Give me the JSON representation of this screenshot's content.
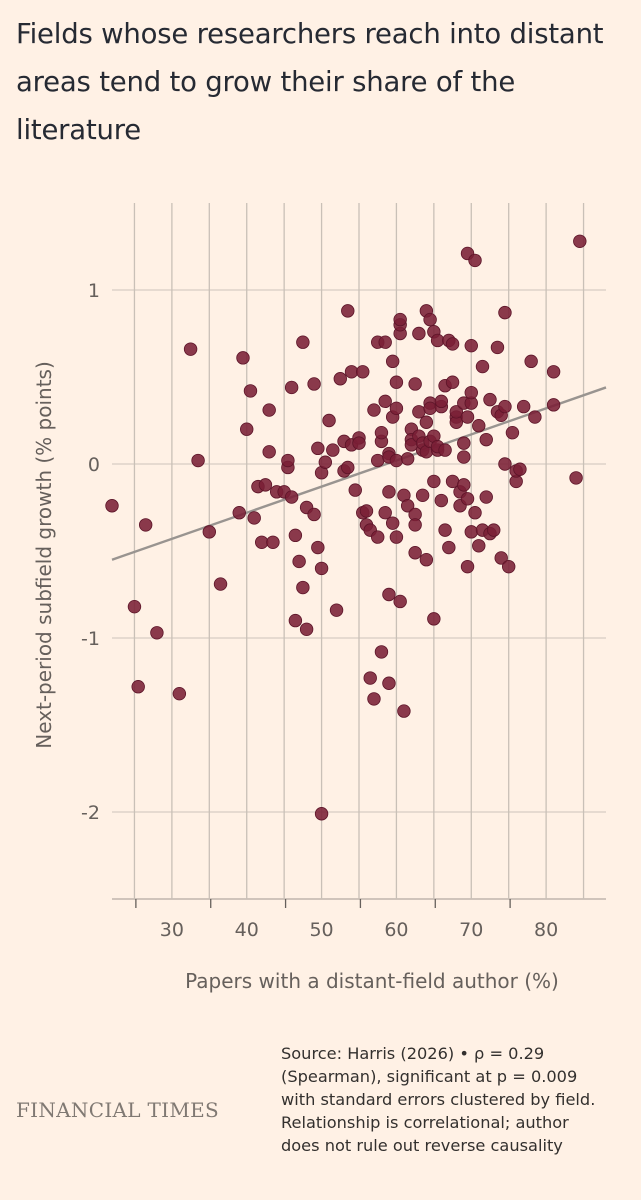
{
  "chart_data": {
    "type": "scatter",
    "title": "Fields whose researchers reach into distant areas tend to grow their share of the literature",
    "xlabel": "Papers with a distant-field author (%)",
    "ylabel": "Next-period subfield growth (% points)",
    "xlim": [
      22,
      88
    ],
    "ylim": [
      -2.5,
      1.5
    ],
    "xticks": [
      30,
      40,
      50,
      60,
      70,
      80
    ],
    "yticks": [
      1,
      0,
      -1,
      -2
    ],
    "grid": "vertical lines at x ticks, horizontal lines at y ticks",
    "point_color": "#7a1f36",
    "trend_color": "#999490",
    "trend_line": {
      "x": [
        22,
        88
      ],
      "y": [
        -0.55,
        0.44
      ]
    },
    "points": [
      [
        22.0,
        -0.24
      ],
      [
        25.0,
        -0.82
      ],
      [
        25.5,
        -1.28
      ],
      [
        26.5,
        -0.35
      ],
      [
        28.0,
        -0.97
      ],
      [
        31.0,
        -1.32
      ],
      [
        32.5,
        0.66
      ],
      [
        33.5,
        0.02
      ],
      [
        35.0,
        -0.39
      ],
      [
        36.5,
        -0.69
      ],
      [
        39.0,
        -0.28
      ],
      [
        39.5,
        0.61
      ],
      [
        40.0,
        0.2
      ],
      [
        40.5,
        0.42
      ],
      [
        41.0,
        -0.31
      ],
      [
        41.5,
        -0.13
      ],
      [
        42.0,
        -0.45
      ],
      [
        42.5,
        -0.12
      ],
      [
        43.0,
        0.07
      ],
      [
        43.0,
        0.31
      ],
      [
        43.5,
        -0.45
      ],
      [
        44.0,
        -0.16
      ],
      [
        45.0,
        -0.16
      ],
      [
        45.5,
        -0.02
      ],
      [
        45.5,
        0.02
      ],
      [
        46.0,
        0.44
      ],
      [
        46.0,
        -0.19
      ],
      [
        46.5,
        -0.41
      ],
      [
        46.5,
        -0.9
      ],
      [
        47.0,
        -0.56
      ],
      [
        47.5,
        0.7
      ],
      [
        47.5,
        -0.71
      ],
      [
        48.0,
        -0.25
      ],
      [
        48.0,
        -0.95
      ],
      [
        49.0,
        -0.29
      ],
      [
        49.0,
        0.46
      ],
      [
        49.5,
        0.09
      ],
      [
        49.5,
        -0.48
      ],
      [
        50.0,
        -2.01
      ],
      [
        50.0,
        -0.6
      ],
      [
        50.0,
        -0.05
      ],
      [
        50.5,
        0.01
      ],
      [
        51.0,
        0.25
      ],
      [
        51.5,
        0.08
      ],
      [
        52.0,
        -0.84
      ],
      [
        52.5,
        0.49
      ],
      [
        53.0,
        -0.04
      ],
      [
        53.0,
        0.13
      ],
      [
        53.5,
        0.88
      ],
      [
        53.5,
        -0.02
      ],
      [
        54.0,
        0.53
      ],
      [
        54.0,
        0.11
      ],
      [
        54.5,
        -0.15
      ],
      [
        55.0,
        0.15
      ],
      [
        55.0,
        0.12
      ],
      [
        55.5,
        -0.28
      ],
      [
        55.5,
        0.53
      ],
      [
        56.0,
        -0.35
      ],
      [
        56.0,
        -0.27
      ],
      [
        56.5,
        -0.38
      ],
      [
        56.5,
        -1.23
      ],
      [
        57.0,
        -1.35
      ],
      [
        57.0,
        0.31
      ],
      [
        57.5,
        -0.42
      ],
      [
        57.5,
        0.02
      ],
      [
        57.5,
        0.7
      ],
      [
        58.0,
        -1.08
      ],
      [
        58.0,
        0.13
      ],
      [
        58.0,
        0.18
      ],
      [
        58.5,
        0.7
      ],
      [
        58.5,
        -0.28
      ],
      [
        58.5,
        0.36
      ],
      [
        59.0,
        -0.16
      ],
      [
        59.0,
        -1.26
      ],
      [
        59.0,
        0.06
      ],
      [
        59.0,
        -0.75
      ],
      [
        59.0,
        0.04
      ],
      [
        59.5,
        0.59
      ],
      [
        59.5,
        0.27
      ],
      [
        59.5,
        -0.34
      ],
      [
        60.0,
        0.02
      ],
      [
        60.0,
        0.47
      ],
      [
        60.0,
        -0.42
      ],
      [
        60.0,
        0.32
      ],
      [
        60.5,
        0.75
      ],
      [
        60.5,
        0.8
      ],
      [
        60.5,
        0.83
      ],
      [
        60.5,
        -0.79
      ],
      [
        61.0,
        -0.18
      ],
      [
        61.0,
        -1.42
      ],
      [
        61.5,
        -0.24
      ],
      [
        61.5,
        0.03
      ],
      [
        62.0,
        0.2
      ],
      [
        62.0,
        0.14
      ],
      [
        62.0,
        0.11
      ],
      [
        62.5,
        -0.29
      ],
      [
        62.5,
        -0.35
      ],
      [
        62.5,
        -0.51
      ],
      [
        62.5,
        0.46
      ],
      [
        63.0,
        0.75
      ],
      [
        63.0,
        0.3
      ],
      [
        63.0,
        0.16
      ],
      [
        63.5,
        0.08
      ],
      [
        63.5,
        0.12
      ],
      [
        63.5,
        -0.18
      ],
      [
        64.0,
        0.07
      ],
      [
        64.0,
        0.88
      ],
      [
        64.0,
        0.24
      ],
      [
        64.0,
        -0.55
      ],
      [
        64.5,
        0.13
      ],
      [
        64.5,
        0.35
      ],
      [
        64.5,
        0.83
      ],
      [
        64.5,
        0.32
      ],
      [
        65.0,
        -0.1
      ],
      [
        65.0,
        -0.89
      ],
      [
        65.0,
        0.76
      ],
      [
        65.0,
        0.16
      ],
      [
        65.5,
        0.08
      ],
      [
        65.5,
        0.1
      ],
      [
        65.5,
        0.71
      ],
      [
        66.0,
        0.33
      ],
      [
        66.0,
        0.36
      ],
      [
        66.0,
        -0.21
      ],
      [
        66.5,
        -0.38
      ],
      [
        66.5,
        0.45
      ],
      [
        66.5,
        0.08
      ],
      [
        67.0,
        -0.48
      ],
      [
        67.0,
        0.71
      ],
      [
        67.5,
        0.69
      ],
      [
        67.5,
        0.47
      ],
      [
        67.5,
        -0.1
      ],
      [
        68.0,
        0.27
      ],
      [
        68.0,
        0.24
      ],
      [
        68.0,
        0.3
      ],
      [
        68.5,
        -0.16
      ],
      [
        68.5,
        -0.24
      ],
      [
        69.0,
        -0.12
      ],
      [
        69.0,
        0.04
      ],
      [
        69.0,
        0.35
      ],
      [
        69.0,
        0.12
      ],
      [
        69.5,
        1.21
      ],
      [
        69.5,
        0.27
      ],
      [
        69.5,
        -0.2
      ],
      [
        69.5,
        -0.59
      ],
      [
        70.0,
        0.68
      ],
      [
        70.0,
        0.35
      ],
      [
        70.0,
        0.41
      ],
      [
        70.0,
        -0.39
      ],
      [
        70.5,
        -0.28
      ],
      [
        70.5,
        1.17
      ],
      [
        71.0,
        0.22
      ],
      [
        71.0,
        -0.47
      ],
      [
        71.5,
        0.56
      ],
      [
        71.5,
        -0.38
      ],
      [
        72.0,
        0.14
      ],
      [
        72.0,
        -0.19
      ],
      [
        72.5,
        0.37
      ],
      [
        72.5,
        -0.4
      ],
      [
        73.0,
        -0.38
      ],
      [
        73.5,
        0.3
      ],
      [
        73.5,
        0.67
      ],
      [
        74.0,
        -0.54
      ],
      [
        74.0,
        0.28
      ],
      [
        74.5,
        0.87
      ],
      [
        74.5,
        0.33
      ],
      [
        74.5,
        0.0
      ],
      [
        75.0,
        -0.59
      ],
      [
        75.5,
        0.18
      ],
      [
        76.0,
        -0.1
      ],
      [
        76.0,
        -0.04
      ],
      [
        76.5,
        -0.03
      ],
      [
        77.0,
        0.33
      ],
      [
        78.0,
        0.59
      ],
      [
        78.5,
        0.27
      ],
      [
        81.0,
        0.53
      ],
      [
        81.0,
        0.34
      ],
      [
        84.0,
        -0.08
      ],
      [
        84.5,
        1.28
      ]
    ]
  },
  "footer": {
    "brand": "FINANCIAL TIMES",
    "source_lines": [
      "Source: Harris (2026) • ρ = 0.29",
      "(Spearman), significant at p = 0.009",
      "with standard errors clustered by field.",
      "Relationship is correlational; author",
      "does not rule out reverse causality"
    ]
  }
}
